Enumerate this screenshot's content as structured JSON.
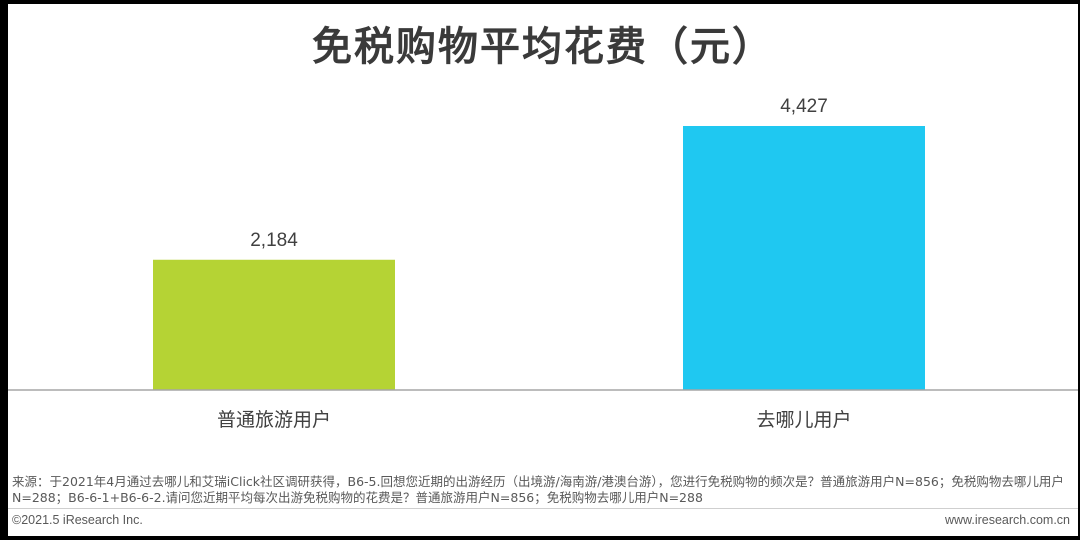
{
  "chart_data": {
    "type": "bar",
    "title": "免税购物平均花费（元）",
    "categories": [
      "普通旅游用户",
      "去哪儿用户"
    ],
    "values": [
      2184,
      4427
    ],
    "value_labels": [
      "2,184",
      "4,427"
    ],
    "colors": [
      "#b5d334",
      "#1fc8f1"
    ],
    "xlabel": "",
    "ylabel": "",
    "ylim": [
      0,
      5000
    ],
    "grid": false,
    "legend": "none"
  },
  "source_note": "来源：于2021年4月通过去哪儿和艾瑞iClick社区调研获得，B6-5.回想您近期的出游经历（出境游/海南游/港澳台游），您进行免税购物的频次是？普通旅游用户N=856；免税购物去哪儿用户N=288；B6-6-1+B6-6-2.请问您近期平均每次出游免税购物的花费是？普通旅游用户N=856；免税购物去哪儿用户N=288",
  "footer": {
    "copyright": "©2021.5 iResearch Inc.",
    "website": "www.iresearch.com.cn"
  }
}
